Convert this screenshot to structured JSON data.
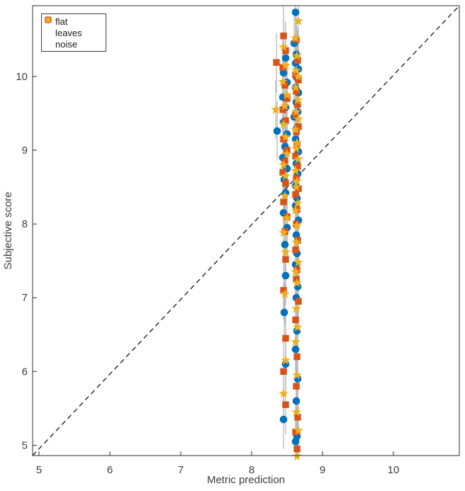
{
  "style": {
    "background": "#ffffff",
    "spine_color": "#2e2e2e",
    "tick_label_color": "#3d3d3d",
    "axis_label_color": "#3d3d3d",
    "errorbar_color": "#b9b9b9",
    "identity_line_color": "#141414",
    "legend_border_color": "#3a3a3a"
  },
  "chart_data": {
    "type": "scatter",
    "title": "",
    "xlabel": "Metric prediction",
    "ylabel": "Subjective score",
    "xlim": [
      4.91,
      10.93
    ],
    "ylim": [
      4.86,
      10.96
    ],
    "xticks": [
      5,
      6,
      7,
      8,
      9,
      10
    ],
    "yticks": [
      5,
      6,
      7,
      8,
      9,
      10
    ],
    "grid": false,
    "legend_position": "top-left",
    "identity_line": {
      "style": "dashed",
      "from": [
        4.91,
        4.86
      ],
      "to": [
        10.93,
        10.96
      ]
    },
    "error_halfheight": 0.4,
    "series": [
      {
        "name": "flat",
        "marker": "circle",
        "color": "#0072BD",
        "points": [
          [
            8.62,
            10.87
          ],
          [
            8.6,
            10.45
          ],
          [
            8.63,
            10.3
          ],
          [
            8.48,
            10.25
          ],
          [
            8.62,
            10.18
          ],
          [
            8.66,
            10.1
          ],
          [
            8.45,
            10.05
          ],
          [
            8.64,
            9.98
          ],
          [
            8.5,
            9.92
          ],
          [
            8.36,
            9.26
          ],
          [
            8.62,
            9.85
          ],
          [
            8.66,
            9.78
          ],
          [
            8.44,
            9.72
          ],
          [
            8.63,
            9.65
          ],
          [
            8.48,
            9.58
          ],
          [
            8.65,
            9.52
          ],
          [
            8.6,
            9.45
          ],
          [
            8.45,
            9.38
          ],
          [
            8.64,
            9.3
          ],
          [
            8.5,
            9.22
          ],
          [
            8.62,
            9.15
          ],
          [
            8.47,
            9.05
          ],
          [
            8.66,
            8.98
          ],
          [
            8.44,
            8.9
          ],
          [
            8.63,
            8.82
          ],
          [
            8.5,
            8.75
          ],
          [
            8.65,
            8.68
          ],
          [
            8.46,
            8.6
          ],
          [
            8.62,
            8.52
          ],
          [
            8.48,
            8.42
          ],
          [
            8.64,
            8.35
          ],
          [
            8.62,
            8.25
          ],
          [
            8.45,
            8.15
          ],
          [
            8.66,
            8.05
          ],
          [
            8.5,
            7.95
          ],
          [
            8.63,
            7.85
          ],
          [
            8.47,
            7.72
          ],
          [
            8.64,
            7.6
          ],
          [
            8.62,
            7.45
          ],
          [
            8.48,
            7.3
          ],
          [
            8.65,
            7.15
          ],
          [
            8.63,
            7.0
          ],
          [
            8.46,
            6.8
          ],
          [
            8.64,
            6.55
          ],
          [
            8.62,
            6.3
          ],
          [
            8.48,
            6.1
          ],
          [
            8.65,
            5.9
          ],
          [
            8.63,
            5.6
          ],
          [
            8.45,
            5.35
          ],
          [
            8.64,
            5.12
          ],
          [
            8.62,
            5.05
          ]
        ]
      },
      {
        "name": "leaves",
        "marker": "square",
        "color": "#D95319",
        "points": [
          [
            8.45,
            10.55
          ],
          [
            8.63,
            10.5
          ],
          [
            8.48,
            10.35
          ],
          [
            8.65,
            10.22
          ],
          [
            8.35,
            10.19
          ],
          [
            8.44,
            10.12
          ],
          [
            8.62,
            10.02
          ],
          [
            8.66,
            9.95
          ],
          [
            8.47,
            9.88
          ],
          [
            8.63,
            9.8
          ],
          [
            8.5,
            9.7
          ],
          [
            8.65,
            9.62
          ],
          [
            8.44,
            9.55
          ],
          [
            8.62,
            9.48
          ],
          [
            8.48,
            9.4
          ],
          [
            8.66,
            9.32
          ],
          [
            8.63,
            9.25
          ],
          [
            8.45,
            9.15
          ],
          [
            8.64,
            9.08
          ],
          [
            8.5,
            9.0
          ],
          [
            8.62,
            8.92
          ],
          [
            8.47,
            8.85
          ],
          [
            8.65,
            8.78
          ],
          [
            8.44,
            8.7
          ],
          [
            8.63,
            8.62
          ],
          [
            8.48,
            8.55
          ],
          [
            8.66,
            8.48
          ],
          [
            8.62,
            8.4
          ],
          [
            8.45,
            8.3
          ],
          [
            8.64,
            8.2
          ],
          [
            8.5,
            8.1
          ],
          [
            8.63,
            8.0
          ],
          [
            8.47,
            7.9
          ],
          [
            8.65,
            7.78
          ],
          [
            8.62,
            7.65
          ],
          [
            8.48,
            7.52
          ],
          [
            8.64,
            7.38
          ],
          [
            8.63,
            7.25
          ],
          [
            8.45,
            7.1
          ],
          [
            8.66,
            6.95
          ],
          [
            8.62,
            6.7
          ],
          [
            8.48,
            6.45
          ],
          [
            8.64,
            6.2
          ],
          [
            8.45,
            6.0
          ],
          [
            8.63,
            5.8
          ],
          [
            8.48,
            5.55
          ],
          [
            8.65,
            5.38
          ],
          [
            8.62,
            5.18
          ],
          [
            8.64,
            4.95
          ]
        ]
      },
      {
        "name": "noise",
        "marker": "star",
        "color": "#EDB120",
        "points": [
          [
            8.66,
            10.75
          ],
          [
            8.62,
            10.52
          ],
          [
            8.45,
            10.4
          ],
          [
            8.64,
            10.28
          ],
          [
            8.48,
            10.15
          ],
          [
            8.63,
            10.08
          ],
          [
            8.66,
            10.0
          ],
          [
            8.44,
            9.93
          ],
          [
            8.62,
            9.85
          ],
          [
            8.34,
            9.55
          ],
          [
            8.5,
            9.75
          ],
          [
            8.65,
            9.68
          ],
          [
            8.47,
            9.6
          ],
          [
            8.63,
            9.52
          ],
          [
            8.66,
            9.42
          ],
          [
            8.45,
            9.35
          ],
          [
            8.62,
            9.28
          ],
          [
            8.48,
            9.18
          ],
          [
            8.64,
            9.1
          ],
          [
            8.63,
            9.02
          ],
          [
            8.5,
            8.95
          ],
          [
            8.66,
            8.88
          ],
          [
            8.45,
            8.8
          ],
          [
            8.62,
            8.72
          ],
          [
            8.48,
            8.65
          ],
          [
            8.64,
            8.58
          ],
          [
            8.63,
            8.5
          ],
          [
            8.47,
            8.38
          ],
          [
            8.65,
            8.28
          ],
          [
            8.62,
            8.18
          ],
          [
            8.5,
            8.08
          ],
          [
            8.64,
            7.98
          ],
          [
            8.45,
            7.88
          ],
          [
            8.63,
            7.75
          ],
          [
            8.48,
            7.62
          ],
          [
            8.66,
            7.48
          ],
          [
            8.62,
            7.35
          ],
          [
            8.64,
            7.2
          ],
          [
            8.47,
            7.05
          ],
          [
            8.63,
            6.85
          ],
          [
            8.65,
            6.6
          ],
          [
            8.62,
            6.4
          ],
          [
            8.48,
            6.15
          ],
          [
            8.64,
            5.95
          ],
          [
            8.45,
            5.7
          ],
          [
            8.63,
            5.45
          ],
          [
            8.66,
            5.2
          ],
          [
            8.64,
            4.85
          ]
        ]
      }
    ]
  }
}
